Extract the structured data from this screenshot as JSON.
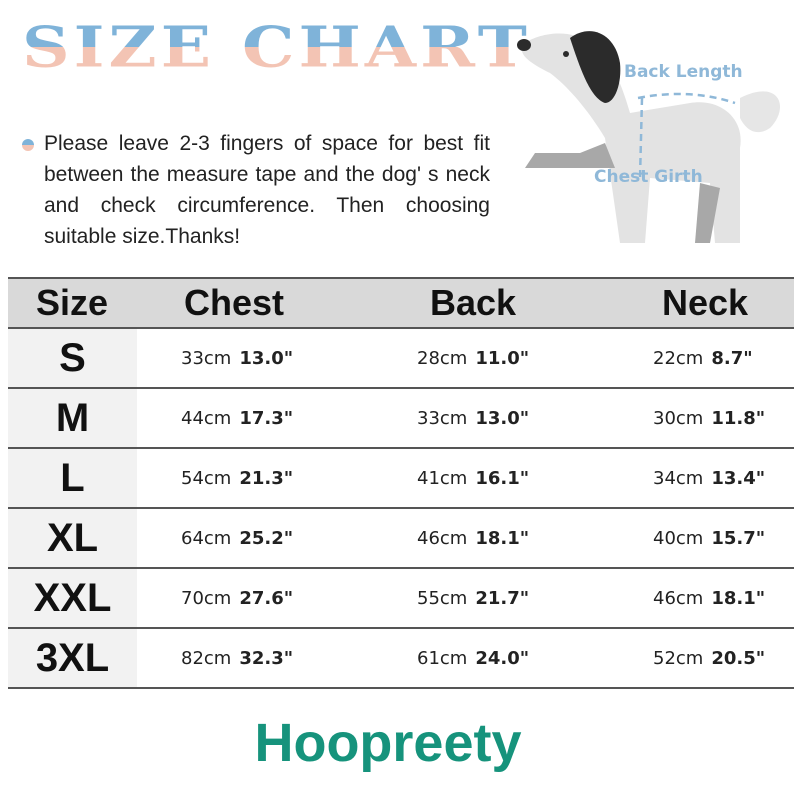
{
  "title": "SIZE CHART",
  "note": "Please leave 2-3 fingers of space for best fit between the measure tape and the dog' s neck and check circumference. Then choosing suitable size.Thanks!",
  "diagram": {
    "back_label": "Back Length",
    "chest_label": "Chest Girth"
  },
  "table": {
    "headers": [
      "Size",
      "Chest",
      "Back",
      "Neck"
    ],
    "rows": [
      {
        "size": "S",
        "chest_cm": "33cm",
        "chest_in": "13.0\"",
        "back_cm": "28cm",
        "back_in": "11.0\"",
        "neck_cm": "22cm",
        "neck_in": "8.7\""
      },
      {
        "size": "M",
        "chest_cm": "44cm",
        "chest_in": "17.3\"",
        "back_cm": "33cm",
        "back_in": "13.0\"",
        "neck_cm": "30cm",
        "neck_in": "11.8\""
      },
      {
        "size": "L",
        "chest_cm": "54cm",
        "chest_in": "21.3\"",
        "back_cm": "41cm",
        "back_in": "16.1\"",
        "neck_cm": "34cm",
        "neck_in": "13.4\""
      },
      {
        "size": "XL",
        "chest_cm": "64cm",
        "chest_in": "25.2\"",
        "back_cm": "46cm",
        "back_in": "18.1\"",
        "neck_cm": "40cm",
        "neck_in": "15.7\""
      },
      {
        "size": "XXL",
        "chest_cm": "70cm",
        "chest_in": "27.6\"",
        "back_cm": "55cm",
        "back_in": "21.7\"",
        "neck_cm": "46cm",
        "neck_in": "18.1\""
      },
      {
        "size": "3XL",
        "chest_cm": "82cm",
        "chest_in": "32.3\"",
        "back_cm": "61cm",
        "back_in": "24.0\"",
        "neck_cm": "52cm",
        "neck_in": "20.5\""
      }
    ]
  },
  "brand": "Hoopreety",
  "colors": {
    "brand": "#16937c",
    "header_bg": "#d9d9d9",
    "title_top": "#7fb3d9",
    "title_bottom": "#f3c4b4"
  }
}
